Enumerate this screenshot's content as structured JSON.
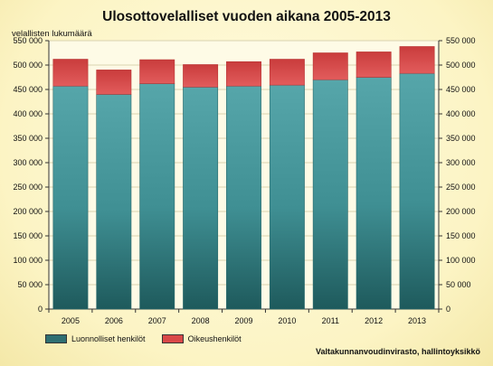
{
  "chart_data": {
    "type": "bar",
    "stacked": true,
    "title": "Ulosottovelalliset vuoden aikana 2005-2013",
    "ylabel": "velallisten lukumäärä",
    "xlabel": "",
    "ylim": [
      0,
      550000
    ],
    "yticks": [
      0,
      50000,
      100000,
      150000,
      200000,
      250000,
      300000,
      350000,
      400000,
      450000,
      500000,
      550000
    ],
    "ytick_labels": [
      "0",
      "50 000",
      "100 000",
      "150 000",
      "200 000",
      "250 000",
      "300 000",
      "350 000",
      "400 000",
      "450 000",
      "500 000",
      "550 000"
    ],
    "grid": true,
    "legend_position": "bottom-left",
    "categories": [
      "2005",
      "2006",
      "2007",
      "2008",
      "2009",
      "2010",
      "2011",
      "2012",
      "2013"
    ],
    "series": [
      {
        "name": "Luonnolliset henkilöt",
        "color": "#4a9da1",
        "values": [
          457000,
          440000,
          462000,
          455000,
          457000,
          459000,
          470000,
          475000,
          483000
        ]
      },
      {
        "name": "Oikeushenkilöt",
        "color": "#d94848",
        "values": [
          55000,
          50000,
          49000,
          46000,
          50000,
          53000,
          55000,
          52000,
          55000
        ]
      }
    ]
  },
  "source": "Valtakunnanvoudinvirasto, hallintoyksikkö"
}
